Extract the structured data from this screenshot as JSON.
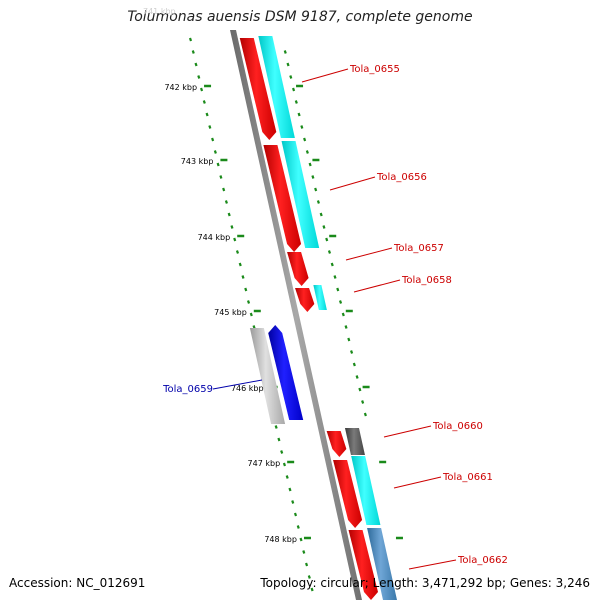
{
  "title": "Tolumonas auensis DSM 9187, complete genome",
  "accession": "Accession: NC_012691",
  "summary": "Topology: circular; Length: 3,471,292 bp; Genes: 3,246",
  "colors": {
    "backbone": "#8a8a8a",
    "tick": "#1a8a1a",
    "cds": "#ff0000",
    "gene": "#00ffff",
    "gene_dark": "#555555",
    "gene_steel": "#4682b4",
    "highlight_cds": "#0000ff",
    "highlight_gene": "#b5b5b5",
    "label_default": "#cc0000",
    "label_highlight": "#0000aa"
  },
  "ticks": [
    {
      "label": "742 kbp"
    },
    {
      "label": "743 kbp"
    },
    {
      "label": "744 kbp"
    },
    {
      "label": "745 kbp"
    },
    {
      "label": "746 kbp"
    },
    {
      "label": "747 kbp"
    },
    {
      "label": "748 kbp"
    }
  ],
  "genes": [
    {
      "id": "g0655",
      "label": "Tola_0655",
      "strand": "+",
      "feature": "cds+gene",
      "highlight": false
    },
    {
      "id": "g0656",
      "label": "Tola_0656",
      "strand": "+",
      "feature": "cds+gene",
      "highlight": false
    },
    {
      "id": "g0657",
      "label": "Tola_0657",
      "strand": "+",
      "feature": "cds",
      "highlight": false
    },
    {
      "id": "g0658",
      "label": "Tola_0658",
      "strand": "+",
      "feature": "cds+gene",
      "highlight": false
    },
    {
      "id": "g0659",
      "label": "Tola_0659",
      "strand": "-",
      "feature": "cds+gene",
      "highlight": true
    },
    {
      "id": "g0660",
      "label": "Tola_0660",
      "strand": "+",
      "feature": "cds+gene-dark",
      "highlight": false
    },
    {
      "id": "g0661",
      "label": "Tola_0661",
      "strand": "+",
      "feature": "cds+gene",
      "highlight": false
    },
    {
      "id": "g0662",
      "label": "Tola_0662",
      "strand": "+",
      "feature": "cds+gene-steel",
      "highlight": false
    }
  ]
}
